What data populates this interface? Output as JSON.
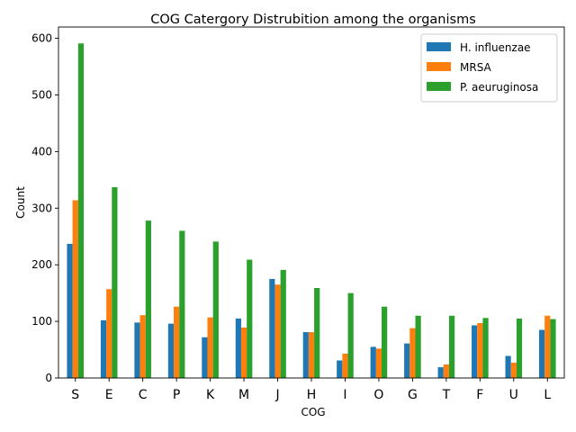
{
  "chart_data": {
    "type": "bar",
    "title": "COG Catergory Distrubition among the organisms",
    "xlabel": "COG",
    "ylabel": "Count",
    "categories": [
      "S",
      "E",
      "C",
      "P",
      "K",
      "M",
      "J",
      "H",
      "I",
      "O",
      "G",
      "T",
      "F",
      "U",
      "L"
    ],
    "series": [
      {
        "name": "H. influenzae",
        "color": "#1f77b4",
        "values": [
          237,
          102,
          98,
          96,
          72,
          105,
          175,
          81,
          31,
          55,
          61,
          19,
          93,
          39,
          85
        ]
      },
      {
        "name": "MRSA",
        "color": "#ff7f0e",
        "values": [
          314,
          157,
          111,
          126,
          107,
          89,
          165,
          81,
          43,
          52,
          88,
          24,
          97,
          27,
          110
        ]
      },
      {
        "name": "P. aeuruginosa",
        "color": "#2ca02c",
        "values": [
          591,
          337,
          278,
          260,
          241,
          209,
          191,
          159,
          150,
          126,
          110,
          110,
          106,
          105,
          104
        ]
      }
    ],
    "ylim": [
      0,
      620
    ],
    "yticks": [
      0,
      100,
      200,
      300,
      400,
      500,
      600
    ],
    "legend_position": "top-right",
    "grid": false
  }
}
